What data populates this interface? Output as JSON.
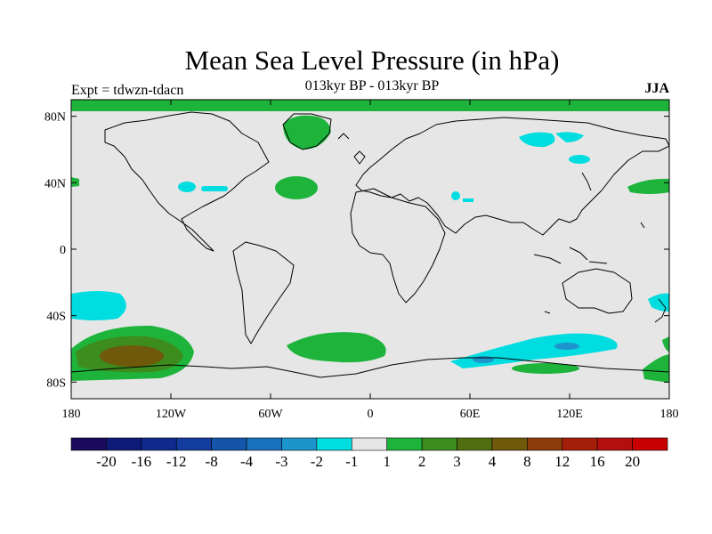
{
  "title": "Mean Sea Level Pressure (in hPa)",
  "subtitle": "013kyr BP - 013kyr BP",
  "experiment": "Expt = tdwzn-tdacn",
  "season": "JJA",
  "axes": {
    "lat_ticks": [
      "80N",
      "40N",
      "0",
      "40S",
      "80S"
    ],
    "lon_ticks": [
      "180",
      "120W",
      "60W",
      "0",
      "60E",
      "120E",
      "180"
    ]
  },
  "colorbar": {
    "labels": [
      "-20",
      "-16",
      "-12",
      "-8",
      "-4",
      "-3",
      "-2",
      "-1",
      "1",
      "2",
      "3",
      "4",
      "8",
      "12",
      "16",
      "20"
    ],
    "colors": [
      "#1a0a5c",
      "#0d1a78",
      "#0f2a8c",
      "#123c9e",
      "#1455aa",
      "#1a72bd",
      "#1d95cc",
      "#00dde0",
      "#e6e6e6",
      "#1eb43c",
      "#3c8c1e",
      "#506e10",
      "#6e5a0a",
      "#8c3c0a",
      "#a51e0a",
      "#b40f0f",
      "#c80000"
    ]
  },
  "colors": {
    "background_field": "#e6e6e6",
    "positive_small": "#1eb43c",
    "positive_mid": "#3c8c1e",
    "positive_high": "#6e5a0a",
    "negative_small": "#00dde0",
    "negative_mid": "#1d95cc"
  }
}
